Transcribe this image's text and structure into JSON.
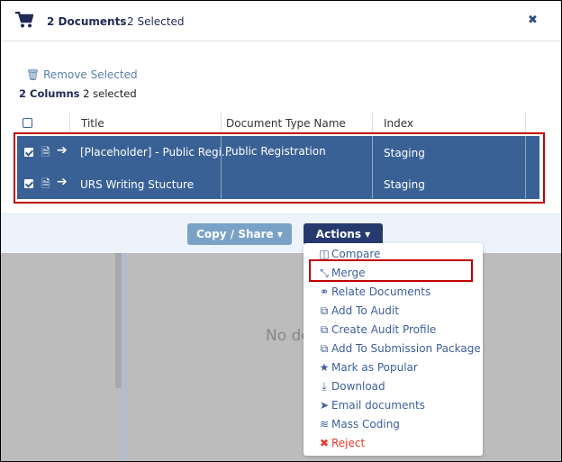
{
  "header": {
    "doc_count": "2 Documents",
    "selected": "2 Selected",
    "close_icon": "close-icon"
  },
  "toolbar": {
    "remove_selected": "Remove Selected",
    "columns_label": "2 Columns",
    "columns_selected": "2 selected"
  },
  "table": {
    "headers": [
      "Title",
      "Document Type Name",
      "Index"
    ],
    "rows": [
      {
        "title": "[Placeholder] - Public Regi...",
        "type": "Public Registration",
        "index": "Staging"
      },
      {
        "title": "URS Writing Stucture",
        "type": "",
        "index": "Staging"
      }
    ]
  },
  "footer": {
    "copy_share": "Copy / Share ▾",
    "actions": "Actions ▾"
  },
  "background": {
    "empty_text": "No do"
  },
  "menu": {
    "items": [
      {
        "label": "Compare",
        "icon": "◫"
      },
      {
        "label": "Merge",
        "icon": "⤡"
      },
      {
        "label": "Relate Documents",
        "icon": "⚭"
      },
      {
        "label": "Add To Audit",
        "icon": "⧉"
      },
      {
        "label": "Create Audit Profile",
        "icon": "⧉"
      },
      {
        "label": "Add To Submission Package",
        "icon": "⧉"
      },
      {
        "label": "Mark as Popular",
        "icon": "★"
      },
      {
        "label": "Download",
        "icon": "⤓"
      },
      {
        "label": "Email documents",
        "icon": "➤"
      },
      {
        "label": "Mass Coding",
        "icon": "≋"
      },
      {
        "label": "Reject",
        "icon": "✖"
      }
    ]
  },
  "colors": {
    "accent": "#1f2a55",
    "row_selected": "#3a6195",
    "reject": "#e8382b",
    "highlight": "#c00000"
  }
}
